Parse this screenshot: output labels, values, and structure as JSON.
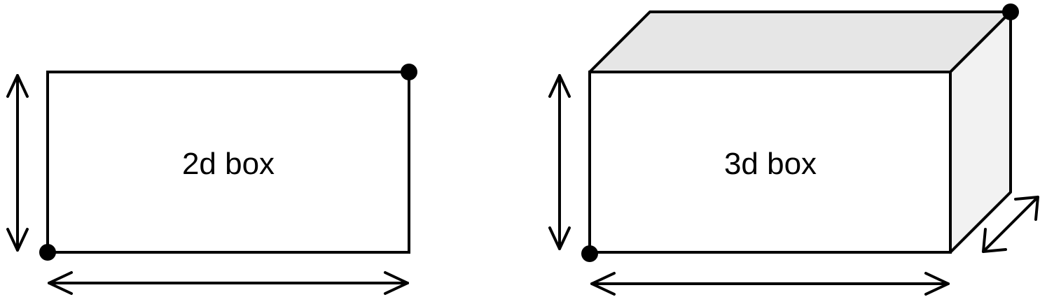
{
  "boxes": {
    "box2d": {
      "label": "2d box"
    },
    "box3d": {
      "label": "3d box"
    }
  },
  "colors": {
    "stroke": "#000000",
    "front_fill": "#ffffff",
    "top_fill": "#e6e6e6",
    "side_fill": "#f2f2f2"
  }
}
